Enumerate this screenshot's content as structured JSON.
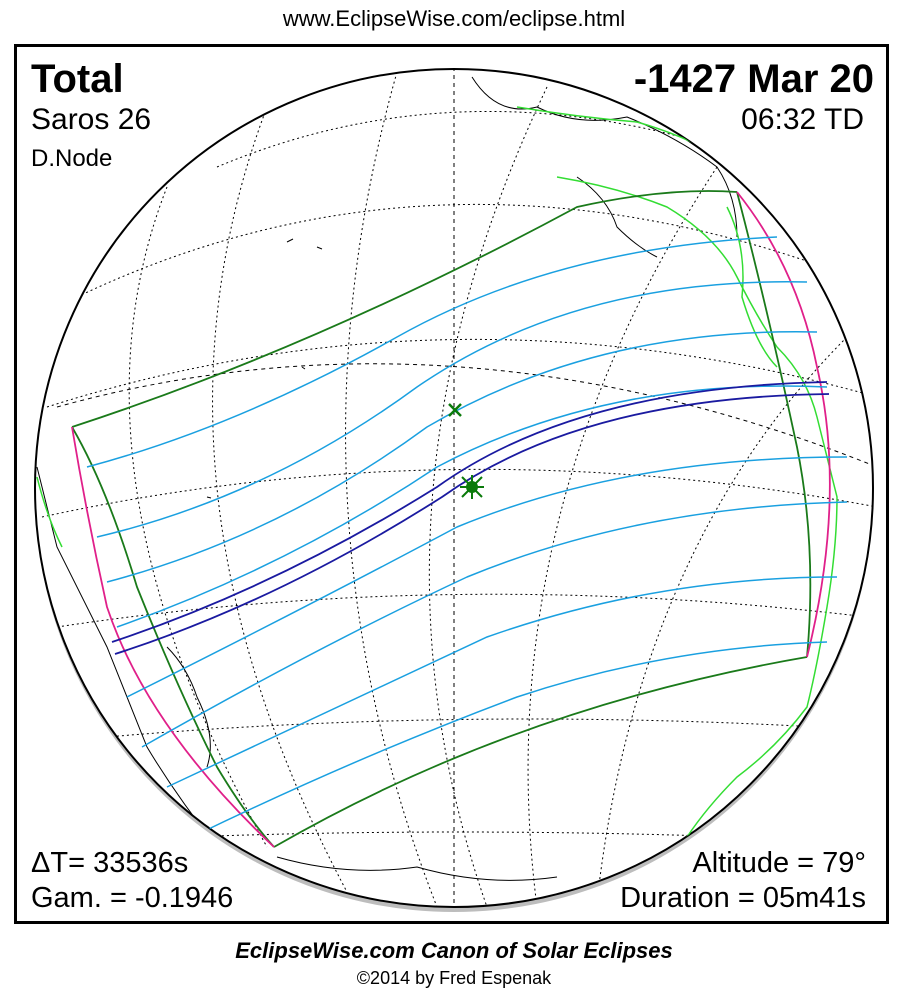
{
  "header": {
    "url": "www.EclipseWise.com/eclipse.html"
  },
  "eclipse": {
    "type": "Total",
    "date": "-1427 Mar 20",
    "saros": "Saros  26",
    "time": "06:32 TD",
    "node": "D.Node",
    "delta_t": "ΔT=  33536s",
    "gamma": "Gam. = -0.1946",
    "altitude": "Altitude = 79°",
    "duration": "Duration = 05m41s"
  },
  "footer": {
    "canon": "EclipseWise.com Canon of Solar Eclipses",
    "copyright": "©2014 by Fred Espenak"
  },
  "colors": {
    "penumbral_limit": "#1a7a1a",
    "contact_lines": "#1aa0e0",
    "central_path": "#1a1aa0",
    "rise_set_curve": "#e0208a",
    "coastline_highlight": "#33dd33",
    "coastline": "#000000",
    "graticule": "#000000",
    "greatest_eclipse": "#0a7a0a"
  },
  "legend_symbols": {
    "greatest_eclipse_marker": "asterisk-star",
    "sub_solar_marker": "x-cross"
  }
}
